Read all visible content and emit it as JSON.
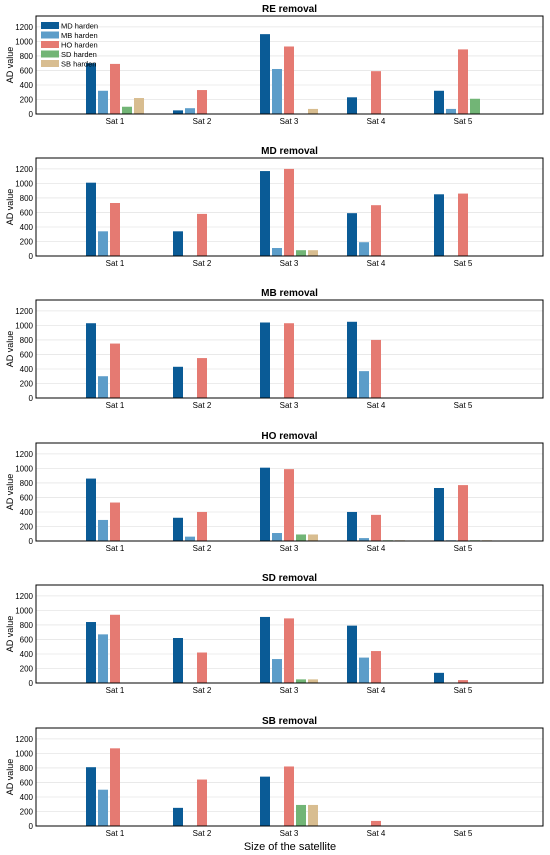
{
  "chart_data": {
    "type": "bar",
    "xlabel": "Size of the satellite",
    "categories": [
      "Sat 1",
      "Sat 2",
      "Sat 3",
      "Sat 4",
      "Sat 5"
    ],
    "series_names": [
      "MD harden",
      "MB harden",
      "HO harden",
      "SD harden",
      "SB harden"
    ],
    "series_colors": [
      "#0a5b96",
      "#5c9dc9",
      "#e57a72",
      "#72b576",
      "#d8bd90"
    ],
    "legend": "top-left",
    "grid": true,
    "ylabel": "AD value",
    "ylim": [
      0,
      1350
    ],
    "yticks": [
      0,
      200,
      400,
      600,
      800,
      1000,
      1200
    ],
    "panels": [
      {
        "title": "RE removal",
        "values": [
          [
            700,
            320,
            690,
            100,
            220
          ],
          [
            50,
            80,
            330,
            0,
            0
          ],
          [
            1100,
            620,
            930,
            0,
            70
          ],
          [
            230,
            0,
            590,
            0,
            0
          ],
          [
            320,
            70,
            890,
            210,
            0
          ]
        ]
      },
      {
        "title": "MD removal",
        "values": [
          [
            1010,
            340,
            730,
            0,
            0
          ],
          [
            340,
            0,
            580,
            0,
            0
          ],
          [
            1170,
            110,
            1200,
            80,
            80
          ],
          [
            590,
            190,
            700,
            0,
            0
          ],
          [
            850,
            0,
            860,
            0,
            0
          ]
        ]
      },
      {
        "title": "MB removal",
        "values": [
          [
            1030,
            300,
            750,
            0,
            0
          ],
          [
            430,
            0,
            550,
            0,
            0
          ],
          [
            1040,
            0,
            1030,
            0,
            0
          ],
          [
            1050,
            370,
            800,
            0,
            0
          ],
          [
            0,
            0,
            0,
            0,
            0
          ]
        ]
      },
      {
        "title": "HO removal",
        "values": [
          [
            860,
            290,
            530,
            0,
            0
          ],
          [
            320,
            60,
            400,
            0,
            0
          ],
          [
            1010,
            110,
            990,
            90,
            90
          ],
          [
            400,
            40,
            360,
            10,
            10
          ],
          [
            730,
            10,
            770,
            10,
            10
          ]
        ]
      },
      {
        "title": "SD removal",
        "values": [
          [
            840,
            670,
            940,
            0,
            0
          ],
          [
            620,
            0,
            420,
            0,
            0
          ],
          [
            910,
            330,
            890,
            50,
            50
          ],
          [
            790,
            350,
            440,
            0,
            0
          ],
          [
            140,
            0,
            40,
            0,
            0
          ]
        ]
      },
      {
        "title": "SB removal",
        "values": [
          [
            810,
            500,
            1070,
            0,
            0
          ],
          [
            250,
            0,
            640,
            0,
            0
          ],
          [
            680,
            0,
            820,
            290,
            290
          ],
          [
            0,
            0,
            70,
            0,
            0
          ],
          [
            0,
            0,
            0,
            0,
            0
          ]
        ]
      }
    ]
  }
}
